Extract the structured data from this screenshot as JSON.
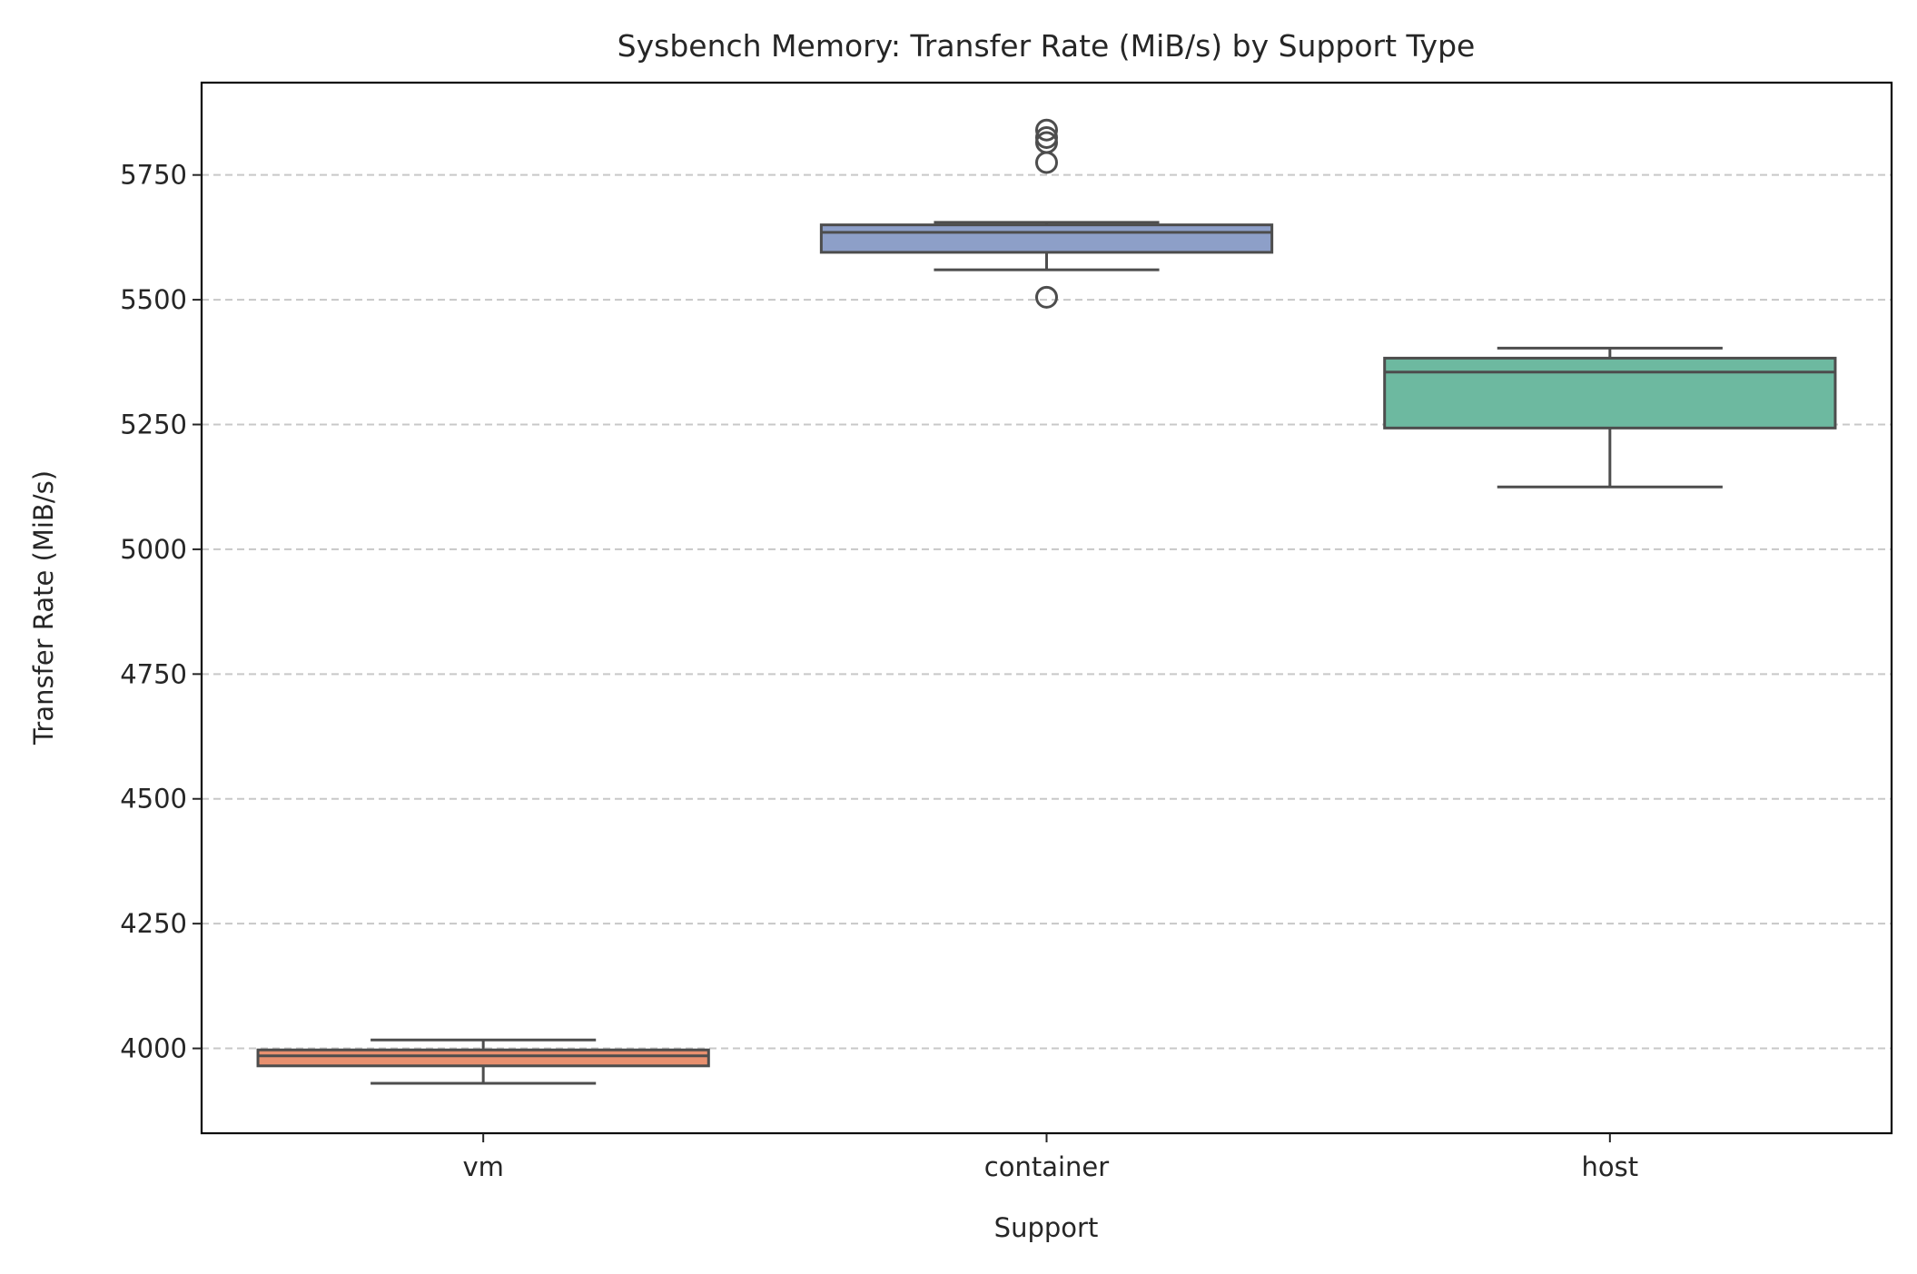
{
  "chart_data": {
    "type": "box",
    "title": "Sysbench Memory: Transfer Rate (MiB/s) by Support Type",
    "xlabel": "Support",
    "ylabel": "Transfer Rate (MiB/s)",
    "categories": [
      "vm",
      "container",
      "host"
    ],
    "ylim": [
      3830,
      5935
    ],
    "yticks": [
      4000,
      4250,
      4500,
      4750,
      5000,
      5250,
      5500,
      5750
    ],
    "grid": "y-dashed",
    "boxes": [
      {
        "category": "vm",
        "color": "#e8906f",
        "whisker_low": 3930,
        "q1": 3965,
        "median": 3985,
        "q3": 3997,
        "whisker_high": 4017,
        "outliers": []
      },
      {
        "category": "container",
        "color": "#8d9fc8",
        "whisker_low": 5560,
        "q1": 5595,
        "median": 5635,
        "q3": 5650,
        "whisker_high": 5655,
        "outliers": [
          5505,
          5775,
          5815,
          5825,
          5840
        ]
      },
      {
        "category": "host",
        "color": "#6db9a0",
        "whisker_low": 5125,
        "q1": 5243,
        "median": 5355,
        "q3": 5383,
        "whisker_high": 5403,
        "outliers": []
      }
    ]
  }
}
